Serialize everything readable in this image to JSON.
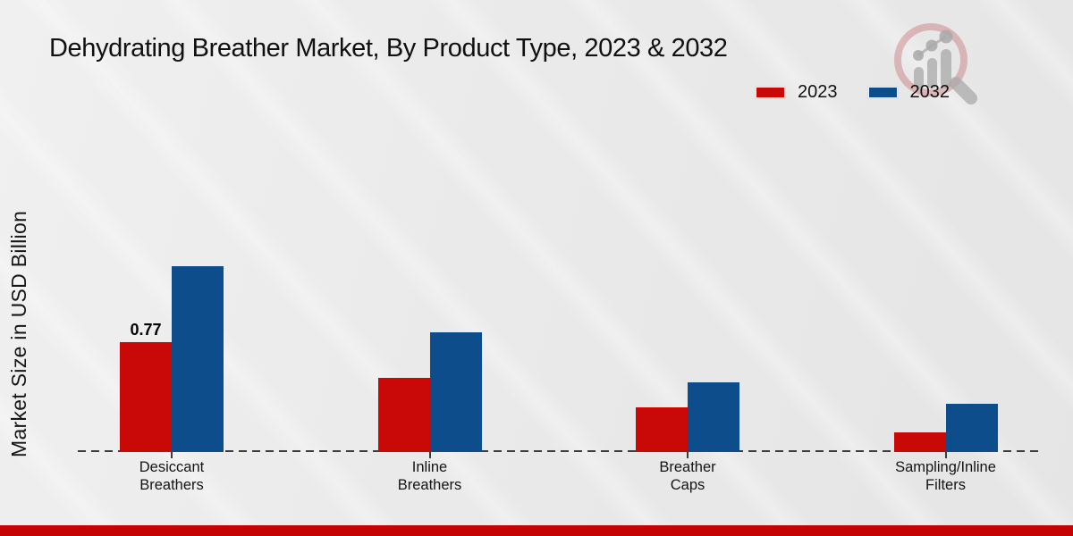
{
  "title": "Dehydrating Breather Market, By Product Type, 2023 & 2032",
  "legend": [
    {
      "label": "2023",
      "color": "#c90808"
    },
    {
      "label": "2032",
      "color": "#0e4d8c"
    }
  ],
  "colors": {
    "bar_2023": "#c90808",
    "bar_2032": "#0e4d8c",
    "axis": "#3c3c3c",
    "footer_accent": "#c40404",
    "background": "#eaeaea"
  },
  "chart_data": {
    "type": "bar",
    "title": "Dehydrating Breather Market, By Product Type, 2023 & 2032",
    "xlabel": "",
    "ylabel": "Market Size in USD Billion",
    "ylim": [
      0,
      1.5
    ],
    "grid": false,
    "legend_position": "top-right",
    "baseline_dashed": true,
    "categories": [
      "Desiccant Breathers",
      "Inline Breathers",
      "Breather Caps",
      "Sampling/Inline Filters"
    ],
    "category_lines": [
      [
        "Desiccant",
        "Breathers"
      ],
      [
        "Inline",
        "Breathers"
      ],
      [
        "Breather",
        "Caps"
      ],
      [
        "Sampling/Inline",
        "Filters"
      ]
    ],
    "series": [
      {
        "name": "2023",
        "color": "#c90808",
        "values": [
          0.77,
          0.52,
          0.31,
          0.14
        ]
      },
      {
        "name": "2032",
        "color": "#0e4d8c",
        "values": [
          1.3,
          0.84,
          0.49,
          0.34
        ]
      }
    ],
    "annotations": [
      {
        "series": "2023",
        "category": "Desiccant Breathers",
        "text": "0.77"
      }
    ]
  },
  "logo": {
    "name": "market-research-watermark"
  }
}
